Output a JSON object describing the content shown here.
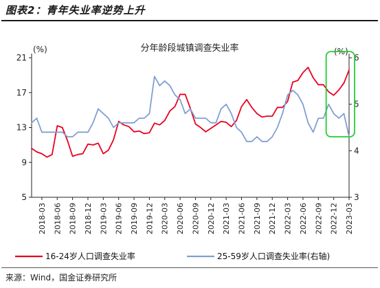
{
  "figure": {
    "title": "图表2：青年失业率逆势上升",
    "source": "来源：Wind，国金证券研究所"
  },
  "chart_data": {
    "type": "line",
    "title": "分年龄段城镇调查失业率",
    "left_unit": "(%)",
    "right_unit": "(%)",
    "y_left": {
      "ylim": [
        5,
        21
      ],
      "ticks": [
        "5",
        "9",
        "13",
        "17",
        "21"
      ]
    },
    "y_right": {
      "ylim": [
        3,
        6
      ],
      "ticks": [
        "3",
        "4",
        "5",
        "6"
      ]
    },
    "x_tick_labels": [
      "2018-03",
      "2018-06",
      "2018-09",
      "2018-12",
      "2019-03",
      "2019-06",
      "2019-09",
      "2019-12",
      "2020-03",
      "2020-06",
      "2020-09",
      "2020-12",
      "2021-03",
      "2021-06",
      "2021-09",
      "2021-12",
      "2022-03",
      "2022-06",
      "2022-09",
      "2022-12",
      "2023-03"
    ],
    "x": [
      "2018-01",
      "2018-02",
      "2018-03",
      "2018-04",
      "2018-05",
      "2018-06",
      "2018-07",
      "2018-08",
      "2018-09",
      "2018-10",
      "2018-11",
      "2018-12",
      "2019-01",
      "2019-02",
      "2019-03",
      "2019-04",
      "2019-05",
      "2019-06",
      "2019-07",
      "2019-08",
      "2019-09",
      "2019-10",
      "2019-11",
      "2019-12",
      "2020-01",
      "2020-02",
      "2020-03",
      "2020-04",
      "2020-05",
      "2020-06",
      "2020-07",
      "2020-08",
      "2020-09",
      "2020-10",
      "2020-11",
      "2020-12",
      "2021-01",
      "2021-02",
      "2021-03",
      "2021-04",
      "2021-05",
      "2021-06",
      "2021-07",
      "2021-08",
      "2021-09",
      "2021-10",
      "2021-11",
      "2021-12",
      "2022-01",
      "2022-02",
      "2022-03",
      "2022-04",
      "2022-05",
      "2022-06",
      "2022-07",
      "2022-08",
      "2022-09",
      "2022-10",
      "2022-11",
      "2022-12",
      "2023-01",
      "2023-02",
      "2023-03"
    ],
    "series": [
      {
        "name": "16-24岁人口调查失业率",
        "axis": "left",
        "color": "#e8001e",
        "values": [
          10.6,
          10.2,
          10.0,
          9.6,
          9.9,
          13.2,
          13.0,
          11.5,
          9.7,
          9.9,
          10.0,
          11.1,
          11.0,
          11.2,
          10.0,
          10.4,
          11.6,
          13.7,
          13.3,
          13.1,
          12.5,
          12.6,
          12.3,
          12.4,
          13.5,
          13.3,
          13.8,
          14.9,
          15.4,
          16.8,
          16.8,
          15.2,
          13.4,
          13.0,
          12.5,
          12.9,
          13.3,
          13.7,
          13.6,
          13.1,
          13.8,
          15.4,
          16.2,
          15.3,
          14.6,
          14.2,
          14.3,
          14.3,
          15.3,
          15.3,
          16.0,
          18.2,
          18.4,
          19.3,
          19.9,
          18.7,
          17.9,
          17.9,
          17.1,
          16.7,
          17.3,
          18.1,
          19.6
        ]
      },
      {
        "name": "25-59岁人口调查失业率(右轴)",
        "axis": "right",
        "color": "#7f9fd3",
        "values": [
          4.6,
          4.7,
          4.4,
          4.4,
          4.4,
          4.4,
          4.4,
          4.3,
          4.3,
          4.4,
          4.4,
          4.4,
          4.6,
          4.9,
          4.8,
          4.7,
          4.5,
          4.6,
          4.6,
          4.6,
          4.6,
          4.7,
          4.7,
          4.8,
          5.6,
          5.4,
          5.5,
          5.4,
          5.2,
          5.1,
          4.8,
          4.9,
          4.7,
          4.7,
          4.7,
          4.6,
          4.6,
          4.9,
          5.0,
          4.8,
          4.5,
          4.4,
          4.2,
          4.2,
          4.3,
          4.2,
          4.2,
          4.3,
          4.5,
          4.8,
          5.2,
          5.3,
          5.2,
          5.0,
          4.6,
          4.4,
          4.7,
          4.7,
          5.0,
          4.8,
          4.7,
          4.8,
          4.3
        ]
      }
    ],
    "legend": {
      "placement": "bottom",
      "labels": [
        "16-24岁人口调查失业率",
        "25-59岁人口调查失业率(右轴)"
      ]
    },
    "highlight": {
      "range": [
        "2022-12",
        "2023-03"
      ],
      "color": "#22cc33"
    },
    "grid": false
  }
}
